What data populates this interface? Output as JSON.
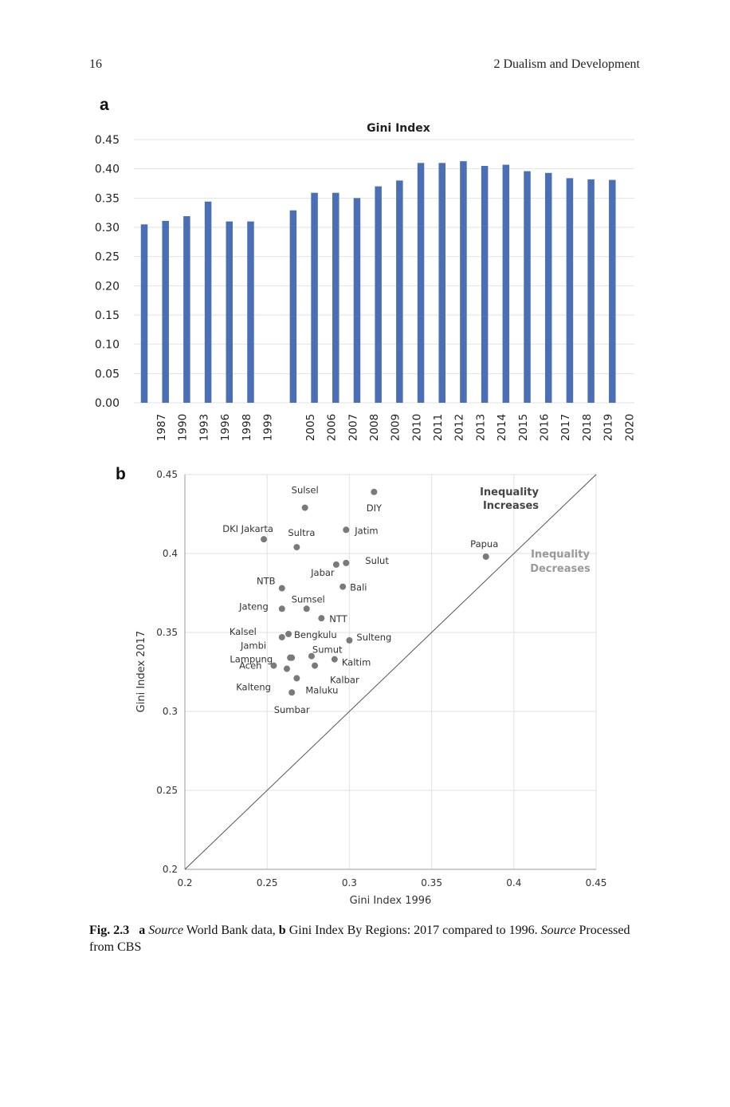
{
  "header": {
    "page_number": "16",
    "chapter": "2   Dualism and Development"
  },
  "panel_a_label": "a",
  "panel_b_label": "b",
  "caption": {
    "label": "Fig. 2.3",
    "a_letter": "a",
    "a_source_word": "Source",
    "a_text": "World Bank data,",
    "b_letter": "b",
    "b_text": "Gini Index By Regions: 2017 compared to 1996.",
    "b_source_word": "Source",
    "b_tail": "Processed from CBS"
  },
  "colors": {
    "bar": "#4a6fb5",
    "point": "#7a7a7a",
    "grid": "#e2e2e2",
    "text": "#333333"
  },
  "chart_data": [
    {
      "type": "bar",
      "title": "Gini Index",
      "categories": [
        "1987",
        "1990",
        "1993",
        "1996",
        "1998",
        "1999",
        "",
        "2005",
        "2006",
        "2007",
        "2008",
        "2009",
        "2010",
        "2011",
        "2012",
        "2013",
        "2014",
        "2015",
        "2016",
        "2017",
        "2018",
        "2019",
        "2020"
      ],
      "values": [
        0.305,
        0.311,
        0.319,
        0.344,
        0.31,
        0.31,
        null,
        0.329,
        0.359,
        0.359,
        0.35,
        0.37,
        0.38,
        0.41,
        0.41,
        0.413,
        0.405,
        0.407,
        0.396,
        0.393,
        0.384,
        0.382,
        0.381
      ],
      "ylim": [
        0,
        0.45
      ],
      "yticks": [
        "0.45",
        "0.40",
        "0.35",
        "0.30",
        "0.25",
        "0.20",
        "0.15",
        "0.10",
        "0.05",
        "0.00"
      ],
      "ytick_values": [
        0.45,
        0.4,
        0.35,
        0.3,
        0.25,
        0.2,
        0.15,
        0.1,
        0.05,
        0.0
      ],
      "xlabel": "",
      "ylabel": "",
      "grid": true,
      "legend": "none"
    },
    {
      "type": "scatter",
      "title": "",
      "xlabel": "Gini Index 1996",
      "ylabel": "Gini Index 2017",
      "xlim": [
        0.2,
        0.45
      ],
      "ylim": [
        0.2,
        0.45
      ],
      "xticks": [
        "0.2",
        "0.25",
        "0.3",
        "0.35",
        "0.4",
        "0.45"
      ],
      "yticks": [
        "0.45",
        "0.4",
        "0.35",
        "0.3",
        "0.25",
        "0.2"
      ],
      "tick_values": [
        0.2,
        0.25,
        0.3,
        0.35,
        0.4,
        0.45
      ],
      "grid": true,
      "reference_line": "y = x",
      "annotations": [
        {
          "text": "Inequality",
          "region": "above diagonal"
        },
        {
          "text": "Increases",
          "region": "above diagonal"
        },
        {
          "text": "Inequality",
          "region": "below diagonal"
        },
        {
          "text": "Decreases",
          "region": "below diagonal"
        }
      ],
      "points": [
        {
          "name": "Sulsel",
          "x": 0.273,
          "y": 0.429
        },
        {
          "name": "DIY",
          "x": 0.315,
          "y": 0.439
        },
        {
          "name": "DKI Jakarta",
          "x": 0.248,
          "y": 0.409
        },
        {
          "name": "Sultra",
          "x": 0.268,
          "y": 0.404
        },
        {
          "name": "Jatim",
          "x": 0.298,
          "y": 0.415
        },
        {
          "name": "Papua",
          "x": 0.383,
          "y": 0.398
        },
        {
          "name": "Jabar",
          "x": 0.292,
          "y": 0.393
        },
        {
          "name": "Sulut",
          "x": 0.298,
          "y": 0.394
        },
        {
          "name": "NTB",
          "x": 0.259,
          "y": 0.378
        },
        {
          "name": "Bali",
          "x": 0.296,
          "y": 0.379
        },
        {
          "name": "Jateng",
          "x": 0.259,
          "y": 0.365
        },
        {
          "name": "Sumsel",
          "x": 0.274,
          "y": 0.365
        },
        {
          "name": "NTT",
          "x": 0.283,
          "y": 0.359
        },
        {
          "name": "Kalsel",
          "x": 0.259,
          "y": 0.347
        },
        {
          "name": "Bengkulu",
          "x": 0.263,
          "y": 0.349
        },
        {
          "name": "Sulteng",
          "x": 0.3,
          "y": 0.345
        },
        {
          "name": "Jambi",
          "x": 0.264,
          "y": 0.334
        },
        {
          "name": "Lampung",
          "x": 0.265,
          "y": 0.334
        },
        {
          "name": "Sumut",
          "x": 0.277,
          "y": 0.335
        },
        {
          "name": "Kaltim",
          "x": 0.291,
          "y": 0.333
        },
        {
          "name": "Aceh",
          "x": 0.254,
          "y": 0.329
        },
        {
          "name": "Kalbar",
          "x": 0.279,
          "y": 0.329
        },
        {
          "name": "Kalteng",
          "x": 0.262,
          "y": 0.327
        },
        {
          "name": "Maluku",
          "x": 0.268,
          "y": 0.321
        },
        {
          "name": "Sumbar",
          "x": 0.265,
          "y": 0.312
        }
      ]
    }
  ]
}
